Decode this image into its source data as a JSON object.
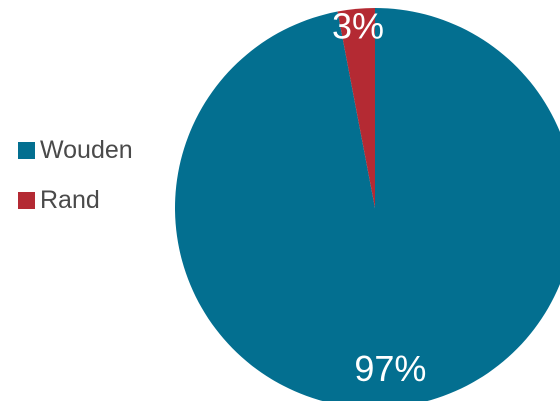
{
  "chart_data": {
    "type": "pie",
    "categories": [
      "Wouden",
      "Rand"
    ],
    "values": [
      97,
      3
    ],
    "data_labels": [
      "97%",
      "3%"
    ],
    "colors": [
      "#036f90",
      "#b42a33"
    ],
    "legend_position": "left"
  }
}
